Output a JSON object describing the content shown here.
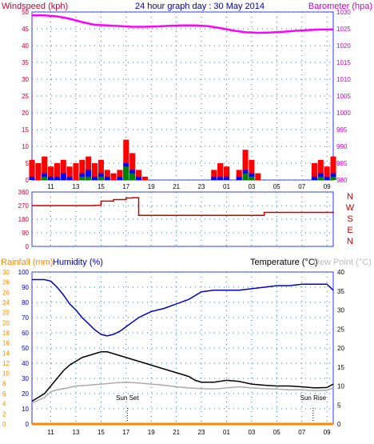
{
  "header": {
    "title": "24 hour graph day : 30 May 2014",
    "left_axis_label": "Windspeed (kph)",
    "right_axis_label": "Barometer (hpa)"
  },
  "colors": {
    "frame": "#3030ff",
    "grid": "#3a7a9a",
    "wind_gust": "#ff0000",
    "wind_avg": "#0000ff",
    "wind_lull": "#008000",
    "barometer": "#ff00ff",
    "direction": "#cc0000",
    "humidity": "#0000cc",
    "temperature": "#000000",
    "dewpoint": "#aaaaaa",
    "rainfall": "#ff8800"
  },
  "chart_data": [
    {
      "type": "line",
      "name": "wind-barometer",
      "title": "24 hour graph day : 30 May 2014",
      "ylabel": "Windspeed (kph)",
      "y2label": "Barometer (hpa)",
      "xticks": [
        "11",
        "13",
        "15",
        "17",
        "19",
        "21",
        "23",
        "01",
        "03",
        "05",
        "07",
        "09"
      ],
      "yticks": [
        "0",
        "5",
        "10",
        "15",
        "20",
        "25",
        "30",
        "35",
        "40",
        "45",
        "50"
      ],
      "y2ticks": [
        "980",
        "985",
        "990",
        "995",
        "1000",
        "1005",
        "1010",
        "1015",
        "1020",
        "1025",
        "1030"
      ],
      "ylim": [
        0,
        50
      ],
      "y2lim": [
        980,
        1030
      ],
      "grid": true,
      "series": [
        {
          "key": "barometer",
          "axis": "right",
          "x": [
            9.5,
            10.5,
            11.5,
            12.5,
            13.5,
            14.5,
            15.5,
            16.5,
            17.5,
            18.5,
            19.5,
            20.5,
            21.5,
            22.5,
            23.5,
            24.5,
            25.5,
            26.5,
            27.5,
            28.5,
            29.5,
            30.5,
            31.5,
            32.5,
            33.5
          ],
          "values": [
            1029,
            1029,
            1028.7,
            1028,
            1027,
            1026.2,
            1026,
            1025.8,
            1025.6,
            1025.6,
            1025.7,
            1025.9,
            1026,
            1026,
            1025.8,
            1025.2,
            1024.5,
            1024,
            1023.8,
            1023.9,
            1024.1,
            1024.4,
            1024.6,
            1024.8,
            1024.8
          ]
        },
        {
          "key": "gust",
          "axis": "left",
          "x": [
            9.5,
            10.0,
            10.5,
            11.0,
            11.5,
            12.0,
            12.5,
            13.0,
            13.5,
            14.0,
            14.5,
            15.0,
            15.5,
            16.0,
            16.5,
            17.0,
            17.5,
            18.0,
            18.5,
            19.0,
            19.5,
            20.0,
            20.5,
            21.0,
            21.5,
            22.0,
            22.5,
            23.0,
            23.5,
            24.0,
            24.5,
            25.0,
            25.5,
            26.0,
            26.5,
            27.0,
            27.5,
            28.0,
            28.5,
            29.0,
            29.5,
            30.0,
            30.5,
            31.0,
            31.5,
            32.0,
            32.5,
            33.0,
            33.5
          ],
          "values": [
            6,
            5,
            7,
            4,
            5,
            6,
            4,
            5,
            6,
            7,
            5,
            6,
            3,
            2,
            3,
            12,
            8,
            3,
            1,
            0,
            0,
            0,
            0,
            0,
            0,
            0,
            0,
            0,
            0,
            3,
            5,
            4,
            0,
            3,
            9,
            6,
            2,
            0,
            0,
            0,
            0,
            0,
            0,
            0,
            0,
            5,
            6,
            4,
            7
          ]
        },
        {
          "key": "avg",
          "axis": "left",
          "x": [
            9.5,
            10.0,
            10.5,
            11.0,
            11.5,
            12.0,
            12.5,
            13.0,
            13.5,
            14.0,
            14.5,
            15.0,
            15.5,
            16.0,
            16.5,
            17.0,
            17.5,
            18.0,
            18.5,
            19.0,
            19.5,
            20.0,
            20.5,
            21.0,
            21.5,
            22.0,
            22.5,
            23.0,
            23.5,
            24.0,
            24.5,
            25.0,
            25.5,
            26.0,
            26.5,
            27.0,
            27.5,
            28.0,
            28.5,
            29.0,
            29.5,
            30.0,
            30.5,
            31.0,
            31.5,
            32.0,
            32.5,
            33.0,
            33.5
          ],
          "values": [
            1,
            0,
            2,
            1,
            1,
            2,
            1,
            0,
            2,
            3,
            1,
            2,
            1,
            0,
            1,
            5,
            3,
            1,
            0,
            0,
            0,
            0,
            0,
            0,
            0,
            0,
            0,
            0,
            0,
            1,
            1,
            1,
            0,
            1,
            3,
            2,
            0,
            0,
            0,
            0,
            0,
            0,
            0,
            0,
            0,
            1,
            2,
            1,
            2
          ]
        },
        {
          "key": "lull",
          "axis": "left",
          "x": [
            9.5,
            10.0,
            10.5,
            11.0,
            11.5,
            12.0,
            12.5,
            13.0,
            13.5,
            14.0,
            14.5,
            15.0,
            15.5,
            16.0,
            16.5,
            17.0,
            17.5,
            18.0,
            18.5,
            19.0,
            19.5,
            20.0,
            20.5,
            21.0,
            21.5,
            22.0,
            22.5,
            23.0,
            23.5,
            24.0,
            24.5,
            25.0,
            25.5,
            26.0,
            26.5,
            27.0,
            27.5,
            28.0,
            28.5,
            29.0,
            29.5,
            30.0,
            30.5,
            31.0,
            31.5,
            32.0,
            32.5,
            33.0,
            33.5
          ],
          "values": [
            0,
            0,
            1,
            0,
            0,
            0,
            0,
            0,
            1,
            1,
            0,
            1,
            0,
            0,
            0,
            4,
            2,
            0,
            0,
            0,
            0,
            0,
            0,
            0,
            0,
            0,
            0,
            0,
            0,
            0,
            0,
            0,
            0,
            0,
            2,
            1,
            0,
            0,
            0,
            0,
            0,
            0,
            0,
            0,
            0,
            0,
            1,
            0,
            1
          ]
        }
      ]
    },
    {
      "type": "line",
      "name": "wind-direction",
      "yticks": [
        "0",
        "90",
        "180",
        "270",
        "360"
      ],
      "ylim": [
        0,
        360
      ],
      "compass": [
        "N",
        "W",
        "S",
        "E",
        "N"
      ],
      "grid": true,
      "series": [
        {
          "key": "direction",
          "x": [
            9.5,
            10.5,
            11.5,
            12.5,
            13.5,
            14.5,
            15.0,
            16.0,
            17.0,
            17.5,
            18.0,
            19.0,
            20.0,
            21.0,
            22.0,
            23.0,
            24.0,
            25.0,
            26.0,
            27.0,
            28.0,
            29.0,
            30.0,
            31.0,
            32.0,
            33.0,
            33.5
          ],
          "values": [
            270,
            270,
            270,
            270,
            270,
            272,
            300,
            310,
            320,
            322,
            205,
            205,
            205,
            205,
            205,
            205,
            205,
            205,
            205,
            205,
            225,
            225,
            225,
            225,
            225,
            225,
            220
          ]
        }
      ]
    },
    {
      "type": "line",
      "name": "temp-humidity",
      "labels": {
        "rainfall": "Rainfall (mm)",
        "humidity": "Humidity (%)",
        "temperature": "Temperature (°C)",
        "dewpoint": "Dew Point (°C)"
      },
      "rain_ticks": [
        "0",
        "2",
        "4",
        "6",
        "8",
        "10",
        "12",
        "14",
        "16",
        "18",
        "20",
        "22",
        "24",
        "26",
        "28",
        "30"
      ],
      "humidity_ticks": [
        "0",
        "10",
        "20",
        "30",
        "40",
        "50",
        "60",
        "70",
        "80",
        "90",
        "100"
      ],
      "temp_ticks": [
        "0",
        "5",
        "10",
        "15",
        "20",
        "25",
        "30",
        "35",
        "40"
      ],
      "xticks": [
        "11",
        "13",
        "15",
        "17",
        "19",
        "21",
        "23",
        "01",
        "03",
        "05",
        "07",
        "09"
      ],
      "humidity_lim": [
        0,
        100
      ],
      "temp_lim": [
        0,
        40
      ],
      "rain_lim": [
        0,
        30
      ],
      "annotations": [
        {
          "text": "Sun Set",
          "x": 17.1
        },
        {
          "text": "Sun Rise",
          "x": 31.9
        }
      ],
      "series": [
        {
          "key": "humidity",
          "axis": "humidity",
          "x": [
            9.5,
            10.5,
            11.0,
            11.5,
            12.0,
            12.5,
            13.0,
            13.5,
            14.0,
            14.5,
            15.0,
            15.5,
            16.0,
            16.5,
            17.0,
            17.5,
            18.0,
            18.5,
            19.0,
            19.5,
            20.0,
            21.0,
            22.0,
            23.0,
            24.0,
            25.0,
            26.0,
            27.0,
            28.0,
            29.0,
            30.0,
            31.0,
            32.0,
            33.0,
            33.5
          ],
          "values": [
            95,
            95,
            94,
            90,
            85,
            79,
            75,
            70,
            66,
            62,
            59,
            58,
            59,
            61,
            64,
            67,
            70,
            72,
            74,
            75,
            76,
            79,
            82,
            87,
            88,
            88,
            88,
            89,
            90,
            91,
            91,
            92,
            92,
            92,
            88
          ]
        },
        {
          "key": "temperature",
          "axis": "temp",
          "x": [
            9.5,
            10.5,
            11.0,
            11.5,
            12.0,
            12.5,
            13.0,
            13.5,
            14.0,
            14.5,
            15.0,
            15.5,
            16.0,
            16.5,
            17.0,
            17.5,
            18.0,
            19.0,
            20.0,
            21.0,
            22.0,
            22.5,
            23.0,
            24.0,
            25.0,
            26.0,
            27.0,
            28.0,
            29.0,
            30.0,
            31.0,
            32.0,
            33.0,
            33.5
          ],
          "values": [
            6,
            8,
            10,
            12,
            14,
            15.5,
            16.5,
            17.5,
            18,
            18.5,
            19,
            19,
            18.5,
            18,
            17.5,
            17,
            16.5,
            15.5,
            14.5,
            13.5,
            12.5,
            11.5,
            11,
            11,
            11.5,
            11.2,
            10.5,
            10.2,
            10,
            10,
            9.8,
            9.5,
            9.6,
            10.5
          ]
        },
        {
          "key": "dewpoint",
          "axis": "temp",
          "x": [
            9.5,
            10.5,
            11.0,
            11.5,
            12.0,
            12.5,
            13.0,
            14.0,
            15.0,
            16.0,
            17.0,
            18.0,
            19.0,
            20.0,
            21.0,
            22.0,
            23.0,
            24.0,
            25.0,
            26.0,
            27.0,
            28.0,
            29.0,
            30.0,
            31.0,
            32.0,
            33.0,
            33.5
          ],
          "values": [
            5.5,
            7,
            8.5,
            9,
            9.3,
            9.6,
            10,
            10.2,
            10.5,
            10.8,
            11,
            10.8,
            10.5,
            10.2,
            9.8,
            9.5,
            9.3,
            9.2,
            9.5,
            9.8,
            9.5,
            9.3,
            9.2,
            9.0,
            9.0,
            8.8,
            8.9,
            9.5
          ]
        },
        {
          "key": "rainfall",
          "axis": "rain",
          "x": [
            9.5,
            33.5
          ],
          "values": [
            0,
            0
          ]
        }
      ]
    }
  ]
}
